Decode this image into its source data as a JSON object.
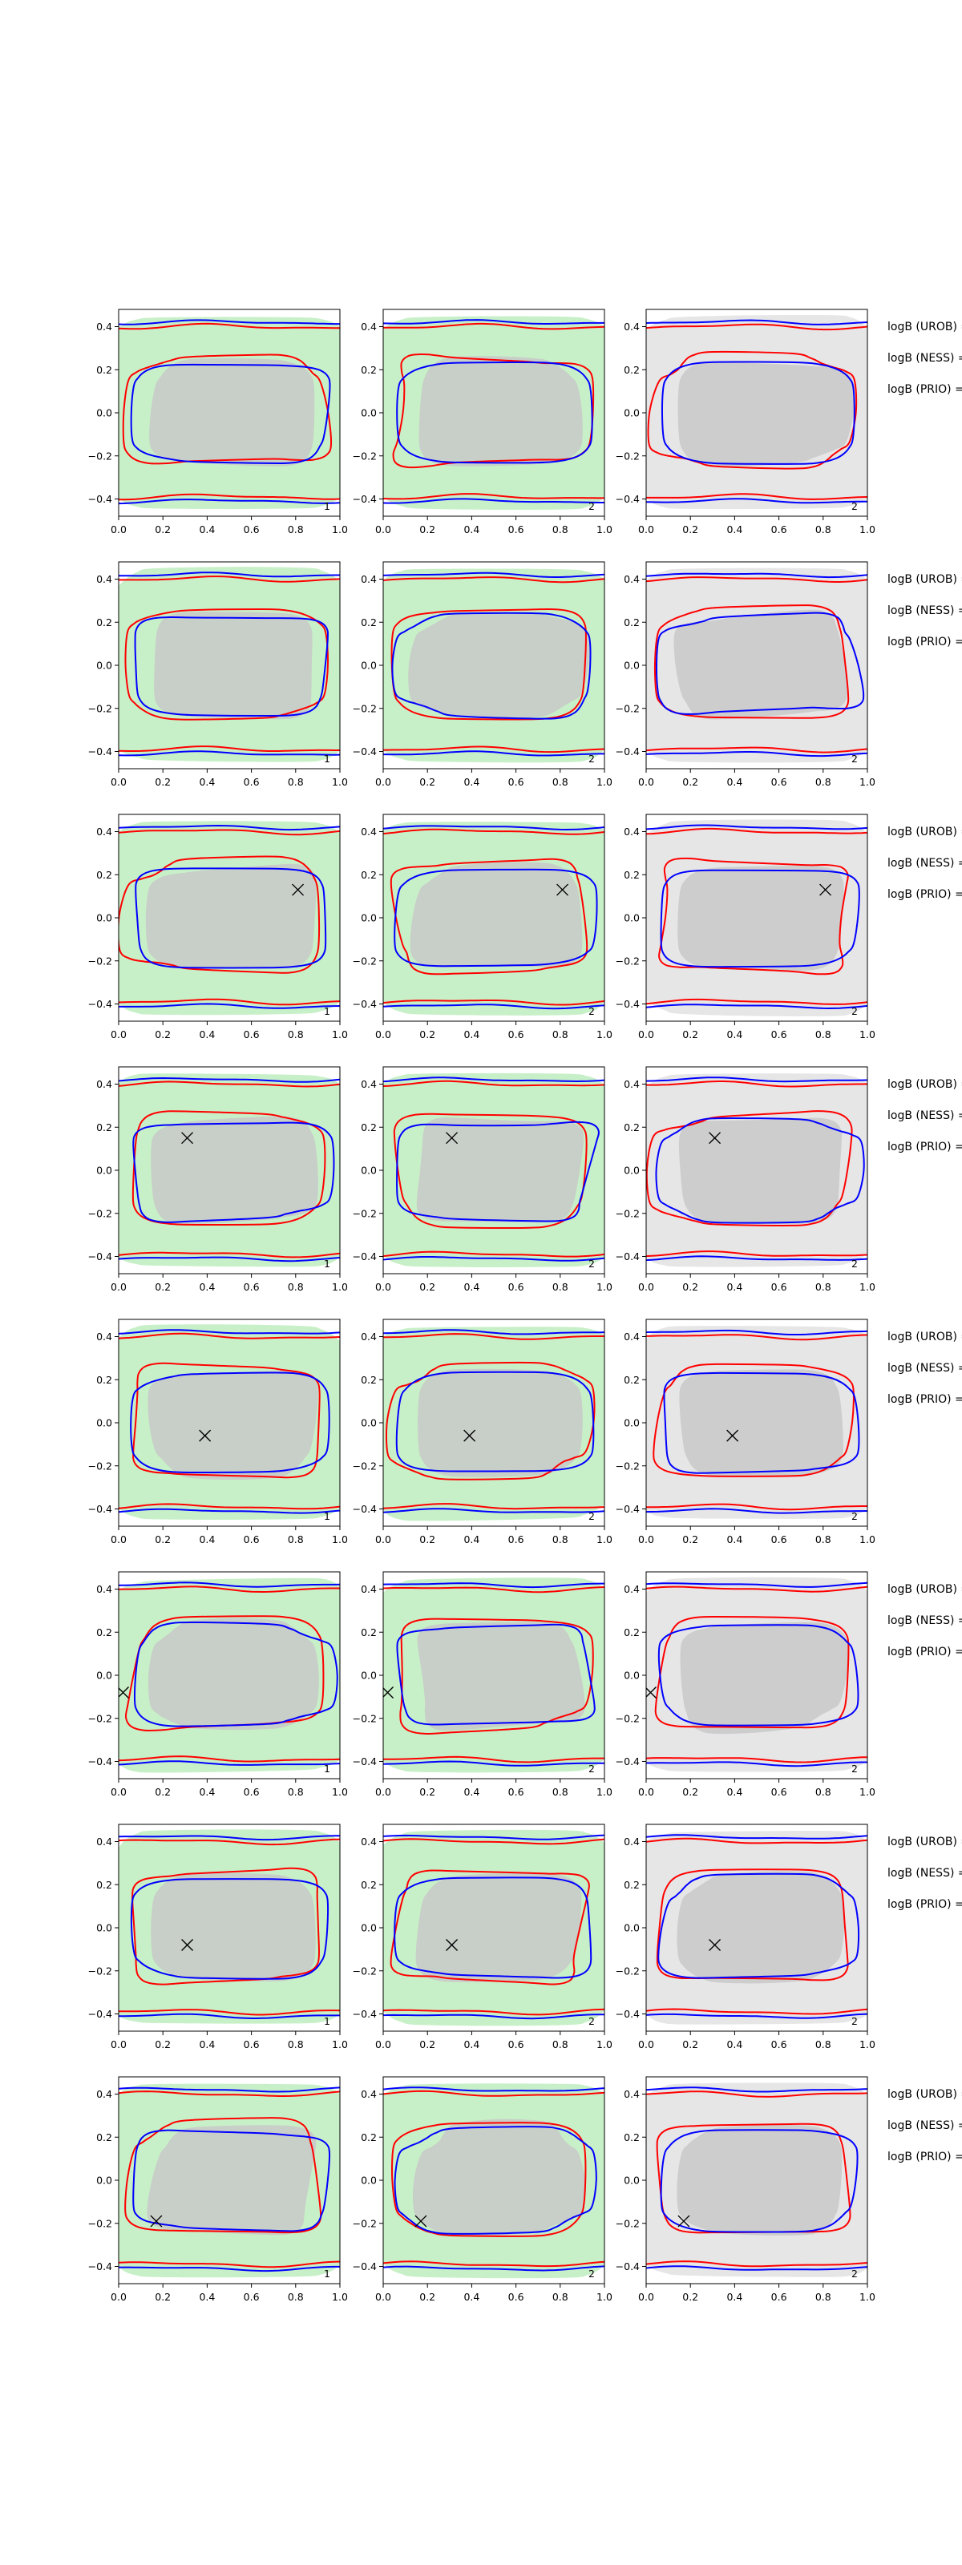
{
  "chart_data": {
    "type": "contour-grid",
    "rows": 8,
    "cols": 3,
    "xlim": [
      0.0,
      1.0
    ],
    "ylim": [
      -0.48,
      0.48
    ],
    "x_ticks": [
      "0.0",
      "0.2",
      "0.4",
      "0.6",
      "0.8",
      "1.0"
    ],
    "x_tick_values": [
      0,
      0.2,
      0.4,
      0.6,
      0.8,
      1.0
    ],
    "y_ticks": [
      "0.4",
      "0.2",
      "0.0",
      "−0.2",
      "−0.4"
    ],
    "y_tick_values": [
      0.4,
      0.2,
      0.0,
      -0.2,
      -0.4
    ],
    "panel_labels": [
      "1",
      "2",
      "2"
    ],
    "annotations": [
      "logB (UROB) =",
      "logB (NESS) =",
      "logB (PRIO) ="
    ],
    "markers": [
      null,
      null,
      {
        "x": 0.81,
        "y": 0.13
      },
      {
        "x": 0.31,
        "y": 0.15
      },
      {
        "x": 0.39,
        "y": -0.06
      },
      {
        "x": 0.02,
        "y": -0.08
      },
      {
        "x": 0.31,
        "y": -0.08
      },
      {
        "x": 0.17,
        "y": -0.19
      }
    ],
    "colors": {
      "red": "#ff0000",
      "blue": "#0000ff",
      "green_fill": "#c8f0c8",
      "gray_fill": "#c8c8c8",
      "light_gray_fill": "#e6e6e6",
      "frame": "#000000"
    }
  }
}
